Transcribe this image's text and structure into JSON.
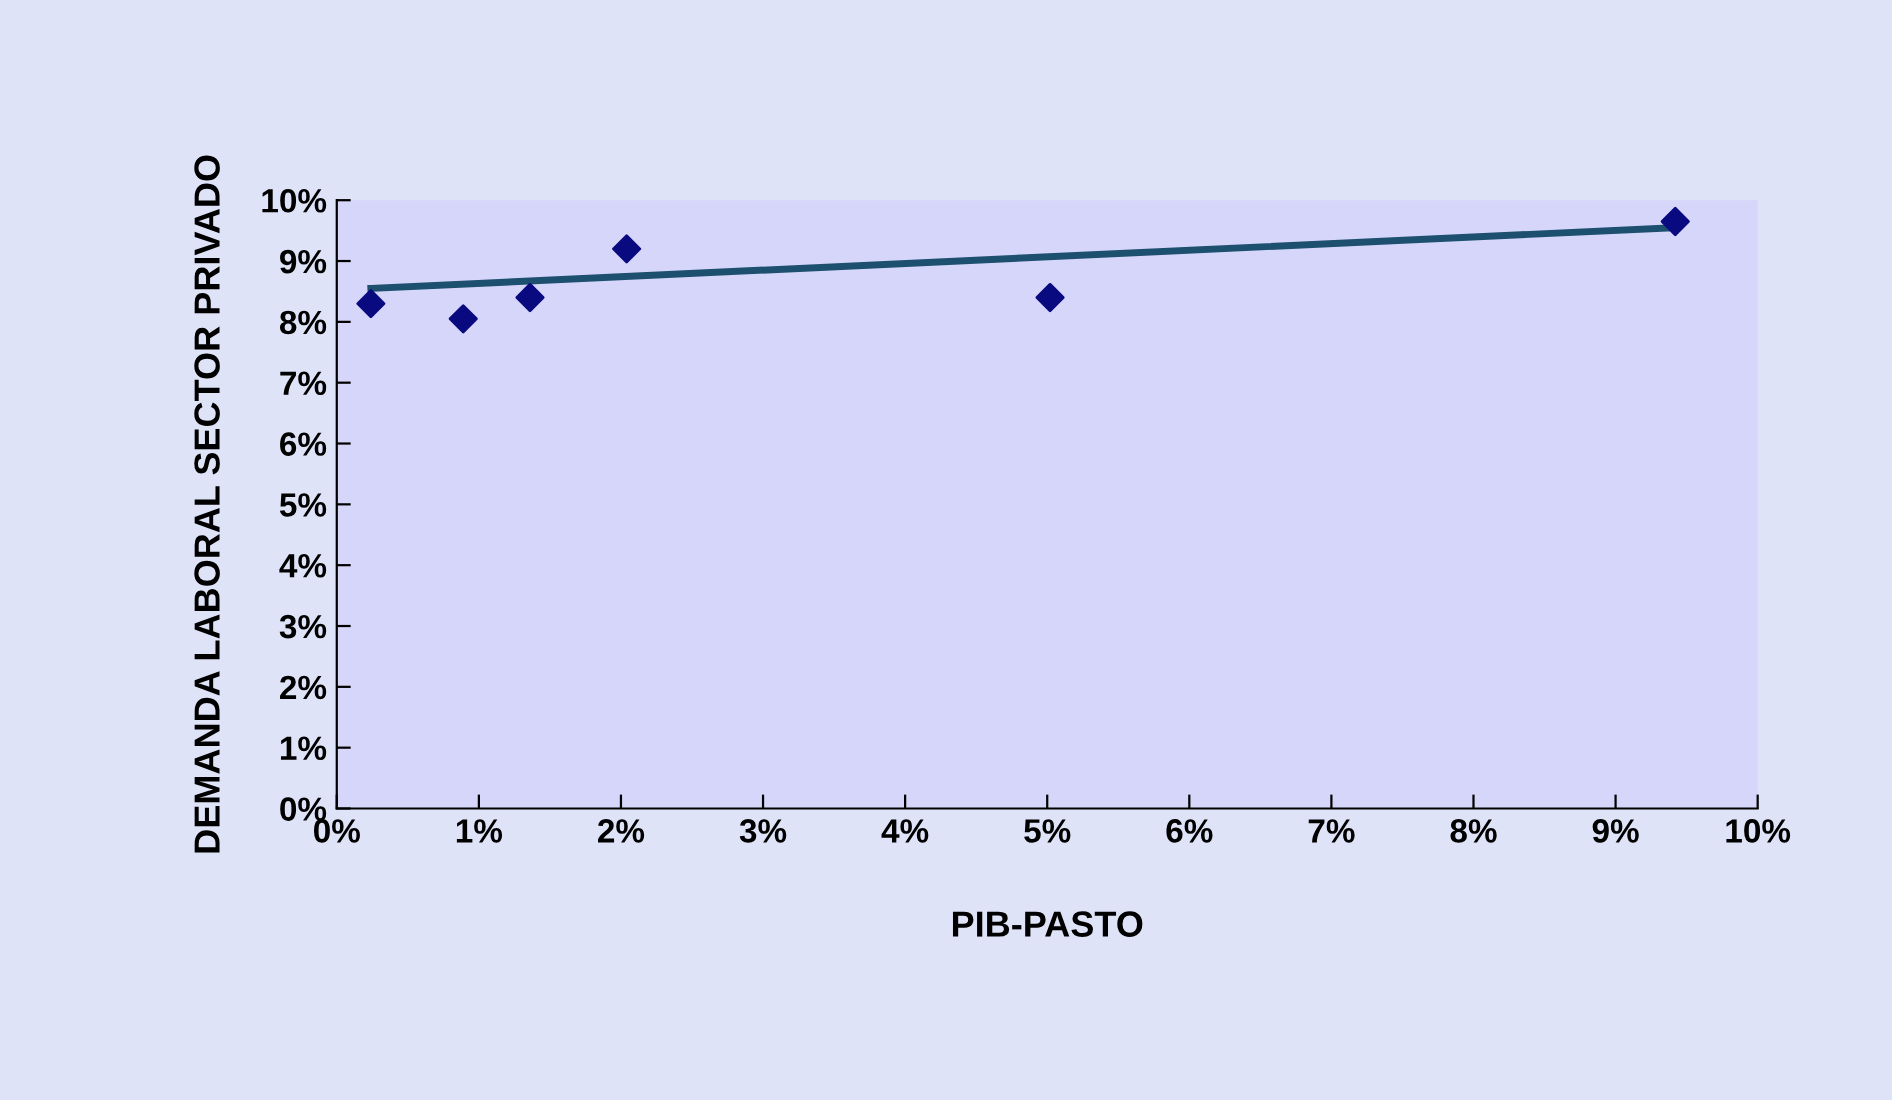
{
  "chart_data": {
    "type": "scatter",
    "xlabel": "PIB-PASTO",
    "ylabel": "DEMANDA LABORAL SECTOR PRIVADO",
    "series": [
      {
        "color": "#0a0a80",
        "marker": "diamond",
        "x": [
          0.24,
          0.89,
          1.36,
          2.04,
          5.02,
          9.42
        ],
        "values": [
          8.3,
          8.05,
          8.4,
          9.2,
          8.4,
          9.65
        ]
      },
      {
        "type": "line",
        "color": "#1d4f6e",
        "marker": "none",
        "line_style": "solid",
        "x": [
          0.24,
          9.42
        ],
        "values": [
          8.55,
          9.55
        ]
      }
    ],
    "xlim": [
      0,
      10
    ],
    "ylim": [
      0,
      10
    ],
    "xticks": [
      {
        "value": 0,
        "label": "0%"
      },
      {
        "value": 1,
        "label": "1%"
      },
      {
        "value": 2,
        "label": "2%"
      },
      {
        "value": 3,
        "label": "3%"
      },
      {
        "value": 4,
        "label": "4%"
      },
      {
        "value": 5,
        "label": "5%"
      },
      {
        "value": 6,
        "label": "6%"
      },
      {
        "value": 7,
        "label": "7%"
      },
      {
        "value": 8,
        "label": "8%"
      },
      {
        "value": 9,
        "label": "9%"
      },
      {
        "value": 10,
        "label": "10%"
      }
    ],
    "yticks": [
      {
        "value": 0,
        "label": "0%"
      },
      {
        "value": 1,
        "label": "1%"
      },
      {
        "value": 2,
        "label": "2%"
      },
      {
        "value": 3,
        "label": "3%"
      },
      {
        "value": 4,
        "label": "4%"
      },
      {
        "value": 5,
        "label": "5%"
      },
      {
        "value": 6,
        "label": "6%"
      },
      {
        "value": 7,
        "label": "7%"
      },
      {
        "value": 8,
        "label": "8%"
      },
      {
        "value": 9,
        "label": "9%"
      },
      {
        "value": 10,
        "label": "10%"
      }
    ],
    "grid": false,
    "legend": false
  }
}
